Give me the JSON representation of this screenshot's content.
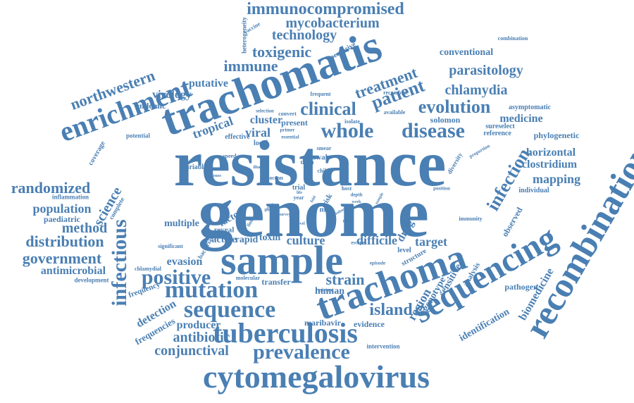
{
  "words": {
    "immunocompromised": "immunocompromised",
    "mycobacterium": "mycobacterium",
    "technology": "technology",
    "toxigenic": "toxigenic",
    "immune": "immune",
    "trachomatis": "trachomatis",
    "enrichment": "enrichment",
    "northwestern": "northwestern",
    "resistance": "resistance",
    "genome": "genome",
    "sample": "sample",
    "trachoma": "trachoma",
    "sequencing": "sequencing",
    "recombination": "recombination",
    "cytomegalovirus": "cytomegalovirus",
    "tuberculosis": "tuberculosis",
    "prevalence": "prevalence",
    "mutation": "mutation",
    "sequence": "sequence",
    "infectious": "infectious",
    "randomized": "randomized",
    "population": "population",
    "distribution": "distribution",
    "government": "government",
    "antimicrobial": "antimicrobial",
    "positive": "positive",
    "method": "method",
    "science": "science",
    "clinical": "clinical",
    "whole": "whole",
    "disease": "disease",
    "treatment": "treatment",
    "patient": "patient",
    "evolution": "evolution",
    "chlamydia": "chlamydia",
    "parasitology": "parasitology",
    "conventional": "conventional",
    "medicine": "medicine",
    "infection": "infection",
    "mapping": "mapping",
    "horizontal": "horizontal",
    "clostridium": "clostridium",
    "biomedicine": "biomedicine",
    "identification": "identification",
    "region": "region",
    "island": "island",
    "strain": "strain",
    "culture": "culture",
    "difficile": "difficile",
    "target": "target",
    "drug": "drug",
    "conjunctival": "conjunctival",
    "antibiotic": "antibiotic",
    "producer": "producer",
    "maribavir": "maribavir",
    "evidence": "evidence",
    "intervention": "intervention",
    "human": "human",
    "transfer": "transfer",
    "evasion": "evasion",
    "detection": "detection",
    "frequencies": "frequencies",
    "frequency": "frequency",
    "development": "development",
    "chlamydial": "chlamydial",
    "multiple": "multiple",
    "factor": "factor",
    "reveal": "reveal",
    "active": "active",
    "rapid": "rapid",
    "toxin": "toxin",
    "virology": "virology",
    "putative": "putative",
    "endemic": "endemic",
    "tropical": "tropical",
    "viral": "viral",
    "cluster": "cluster",
    "present": "present",
    "effective": "effective",
    "local": "local",
    "potential": "potential",
    "coverage": "coverage",
    "paediatric": "paediatric",
    "inflammation": "inflammation",
    "variable": "variable",
    "speed": "speed",
    "data": "data",
    "trial": "trial",
    "host": "host",
    "depth": "depth",
    "risk": "risk",
    "mas": "mas",
    "solomon": "solomon",
    "sureselect": "sureselect",
    "reference": "reference",
    "asymptomatic": "asymptomatic",
    "phylogenetic": "phylogenetic",
    "individual": "individual",
    "observed": "observed",
    "analysis": "analysis",
    "pathogen": "pathogen",
    "genotype": "genotype",
    "sensitive": "sensitive",
    "level": "level",
    "structure": "structure",
    "immunity": "immunity",
    "heterogeneity": "heterogeneity",
    "pervasive": "pervasive",
    "combination": "combination",
    "frequent": "frequent",
    "recombine": "recombine",
    "available": "available",
    "isolate": "isolate",
    "primer": "primer",
    "convert": "convert",
    "selection": "selection",
    "essential": "essential",
    "smear": "smear",
    "swab": "swab",
    "child": "child",
    "ocean": "ocean",
    "significant": "significant",
    "bacterial": "bacterial",
    "linkage": "linkage",
    "molecular": "molecular",
    "complete": "complete",
    "diversity": "diversity",
    "position": "position",
    "resistant": "resistant",
    "escape": "escape",
    "episode": "episode",
    "year": "year",
    "aged": "aged",
    "robust": "robust",
    "most": "most",
    "week": "week",
    "novel": "novel",
    "illumina": "illumina",
    "intense": "intense",
    "sample_small": "sample",
    "proportion": "proportion",
    "antiviral": "antiviral",
    "area": "area",
    "stool": "stool",
    "fold": "fold",
    "life": "life",
    "survey": "survey",
    "vaccine": "vaccine"
  }
}
